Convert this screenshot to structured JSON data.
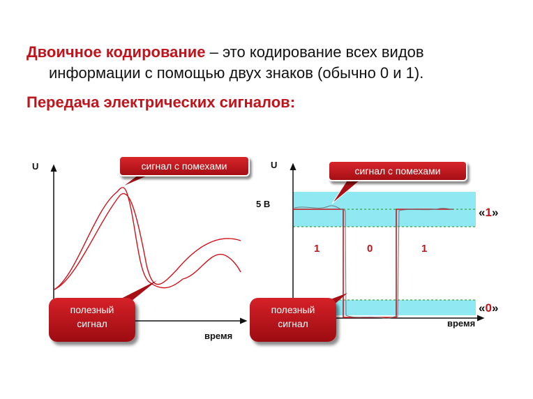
{
  "headline": {
    "term": "Двоичное кодирование",
    "line1_rest": " – это кодирование всех видов",
    "line2": "информации с помощью двух знаков (обычно 0 и 1)."
  },
  "subhead": "Передача электрических сигналов:",
  "left_diagram": {
    "y_axis_label": "U",
    "x_axis_label": "время",
    "noise_callout": "сигнал с помехами",
    "useful_signal_line1": "полезный",
    "useful_signal_line2": "сигнал"
  },
  "right_diagram": {
    "y_axis_label": "U",
    "x_axis_label": "время",
    "voltage_label": "5 В",
    "noise_callout": "сигнал с помехами",
    "useful_signal_line1": "полезный",
    "useful_signal_line2": "сигнал",
    "bits": [
      "1",
      "0",
      "1"
    ],
    "level_one": {
      "open": "«",
      "digit": "1",
      "close": "»"
    },
    "level_zero": {
      "open": "«",
      "digit": "0",
      "close": "»"
    }
  },
  "colors": {
    "accent": "#c0141c",
    "band": "#8fe8f2",
    "signal": "#d01018",
    "noise": "#6e7a80"
  }
}
